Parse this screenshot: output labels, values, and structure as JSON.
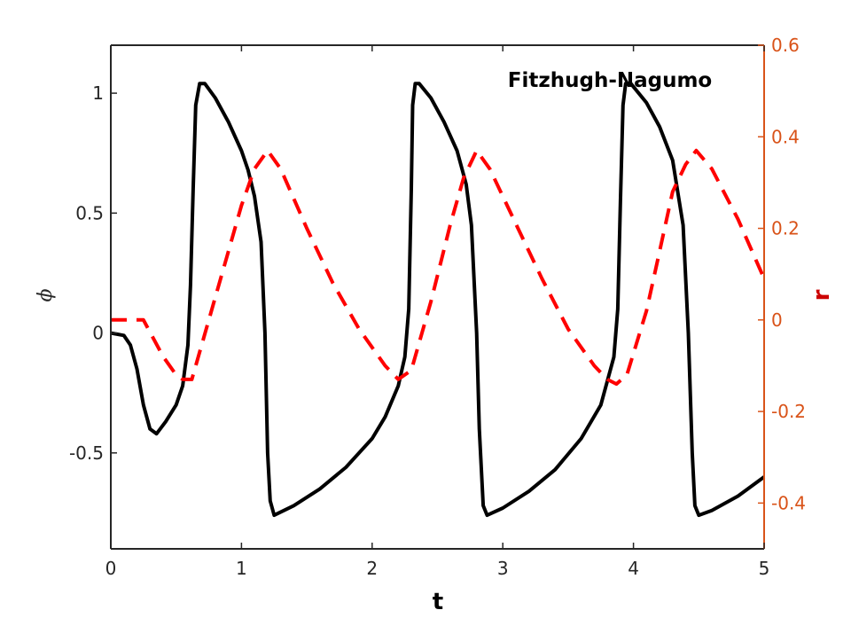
{
  "chart_data": {
    "type": "line",
    "title": "",
    "annotation": "Fitzhugh-Nagumo",
    "xlabel": "t",
    "ylabel_left": "ϕ",
    "ylabel_right": "r",
    "xlim": [
      0,
      5
    ],
    "ylim_left": [
      -0.9,
      1.2
    ],
    "ylim_right": [
      -0.5,
      0.6
    ],
    "x_ticks": [
      0,
      1,
      2,
      3,
      4,
      5
    ],
    "x_tick_labels": [
      "0",
      "1",
      "2",
      "3",
      "4",
      "5"
    ],
    "left_ticks": [
      -0.5,
      0,
      0.5,
      1
    ],
    "left_tick_labels": [
      "-0.5",
      "0",
      "0.5",
      "1"
    ],
    "right_ticks": [
      -0.4,
      -0.2,
      0,
      0.2,
      0.4,
      0.6
    ],
    "right_tick_labels": [
      "-0.4",
      "-0.2",
      "0",
      "0.2",
      "0.4",
      "0.6"
    ],
    "grid": false,
    "legend": "none",
    "colors": {
      "phi": "#000000",
      "r": "#ff0000",
      "right_axis": "#d95319",
      "left_axis": "#262626"
    },
    "series": [
      {
        "axis": "left",
        "style": "solid",
        "color": "#000000",
        "points": [
          [
            0.0,
            0.0
          ],
          [
            0.1,
            -0.01
          ],
          [
            0.15,
            -0.05
          ],
          [
            0.2,
            -0.15
          ],
          [
            0.25,
            -0.3
          ],
          [
            0.3,
            -0.4
          ],
          [
            0.35,
            -0.42
          ],
          [
            0.42,
            -0.37
          ],
          [
            0.5,
            -0.3
          ],
          [
            0.55,
            -0.22
          ],
          [
            0.59,
            -0.05
          ],
          [
            0.61,
            0.2
          ],
          [
            0.63,
            0.6
          ],
          [
            0.65,
            0.95
          ],
          [
            0.68,
            1.04
          ],
          [
            0.72,
            1.04
          ],
          [
            0.8,
            0.98
          ],
          [
            0.9,
            0.88
          ],
          [
            1.0,
            0.76
          ],
          [
            1.05,
            0.68
          ],
          [
            1.1,
            0.57
          ],
          [
            1.15,
            0.38
          ],
          [
            1.18,
            0.0
          ],
          [
            1.2,
            -0.5
          ],
          [
            1.22,
            -0.7
          ],
          [
            1.25,
            -0.76
          ],
          [
            1.4,
            -0.72
          ],
          [
            1.6,
            -0.65
          ],
          [
            1.8,
            -0.56
          ],
          [
            2.0,
            -0.44
          ],
          [
            2.1,
            -0.35
          ],
          [
            2.2,
            -0.22
          ],
          [
            2.25,
            -0.1
          ],
          [
            2.28,
            0.1
          ],
          [
            2.3,
            0.6
          ],
          [
            2.31,
            0.95
          ],
          [
            2.33,
            1.04
          ],
          [
            2.36,
            1.04
          ],
          [
            2.45,
            0.98
          ],
          [
            2.55,
            0.88
          ],
          [
            2.65,
            0.76
          ],
          [
            2.72,
            0.62
          ],
          [
            2.76,
            0.45
          ],
          [
            2.8,
            0.0
          ],
          [
            2.82,
            -0.4
          ],
          [
            2.85,
            -0.72
          ],
          [
            2.88,
            -0.76
          ],
          [
            3.0,
            -0.73
          ],
          [
            3.2,
            -0.66
          ],
          [
            3.4,
            -0.57
          ],
          [
            3.6,
            -0.44
          ],
          [
            3.75,
            -0.3
          ],
          [
            3.85,
            -0.1
          ],
          [
            3.88,
            0.1
          ],
          [
            3.9,
            0.55
          ],
          [
            3.92,
            0.95
          ],
          [
            3.94,
            1.04
          ],
          [
            3.98,
            1.04
          ],
          [
            4.1,
            0.96
          ],
          [
            4.2,
            0.86
          ],
          [
            4.3,
            0.72
          ],
          [
            4.38,
            0.45
          ],
          [
            4.42,
            0.0
          ],
          [
            4.45,
            -0.5
          ],
          [
            4.47,
            -0.72
          ],
          [
            4.5,
            -0.76
          ],
          [
            4.6,
            -0.74
          ],
          [
            4.8,
            -0.68
          ],
          [
            5.0,
            -0.6
          ]
        ]
      },
      {
        "axis": "right",
        "style": "dashed",
        "color": "#ff0000",
        "points": [
          [
            0.0,
            0.0
          ],
          [
            0.25,
            0.0
          ],
          [
            0.4,
            -0.08
          ],
          [
            0.5,
            -0.12
          ],
          [
            0.55,
            -0.13
          ],
          [
            0.62,
            -0.13
          ],
          [
            0.75,
            0.0
          ],
          [
            0.9,
            0.15
          ],
          [
            1.0,
            0.25
          ],
          [
            1.1,
            0.33
          ],
          [
            1.2,
            0.37
          ],
          [
            1.3,
            0.33
          ],
          [
            1.5,
            0.2
          ],
          [
            1.7,
            0.08
          ],
          [
            1.9,
            -0.02
          ],
          [
            2.1,
            -0.1
          ],
          [
            2.2,
            -0.13
          ],
          [
            2.3,
            -0.11
          ],
          [
            2.45,
            0.04
          ],
          [
            2.6,
            0.21
          ],
          [
            2.7,
            0.31
          ],
          [
            2.8,
            0.37
          ],
          [
            2.9,
            0.33
          ],
          [
            3.1,
            0.21
          ],
          [
            3.3,
            0.09
          ],
          [
            3.5,
            -0.02
          ],
          [
            3.7,
            -0.1
          ],
          [
            3.8,
            -0.13
          ],
          [
            3.87,
            -0.14
          ],
          [
            3.95,
            -0.12
          ],
          [
            4.1,
            0.02
          ],
          [
            4.2,
            0.15
          ],
          [
            4.3,
            0.28
          ],
          [
            4.4,
            0.34
          ],
          [
            4.48,
            0.37
          ],
          [
            4.6,
            0.33
          ],
          [
            4.8,
            0.22
          ],
          [
            5.0,
            0.09
          ]
        ]
      }
    ]
  }
}
